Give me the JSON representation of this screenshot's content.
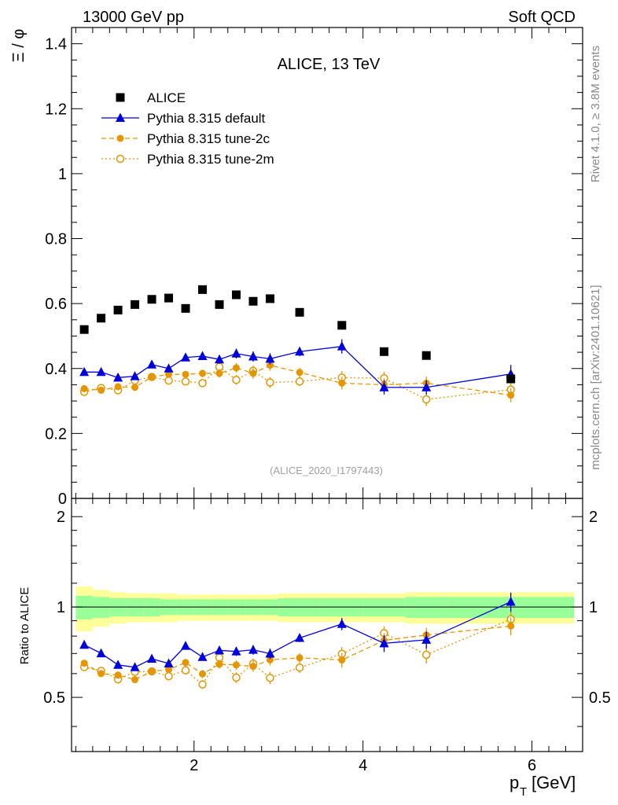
{
  "header": {
    "left": "13000 GeV pp",
    "right": "Soft QCD"
  },
  "side_labels": {
    "rivet": "Rivet 4.1.0, ≥ 3.8M events",
    "mcplots": "mcplots.cern.ch [arXiv:2401.10621]"
  },
  "chart_data": {
    "type": "scatter",
    "title": "ALICE, 13 TeV",
    "analysis_id": "(ALICE_2020_I1797443)",
    "ylabel": "Ξ / φ",
    "ratio_ylabel": "Ratio to ALICE",
    "xlabel": "p_T [GeV]",
    "xlabel_main": "p",
    "xlabel_sub": "T",
    "xlabel_unit": "[GeV]",
    "xlim": [
      0.55,
      6.6
    ],
    "ylim": [
      0,
      1.45
    ],
    "ratio_ylim": [
      0.33,
      2.3
    ],
    "x_ticks": [
      "2",
      "4",
      "6"
    ],
    "y_ticks": [
      "0",
      "0.2",
      "0.4",
      "0.6",
      "0.8",
      "1",
      "1.2",
      "1.4"
    ],
    "ratio_ticks": [
      "0.5",
      "1",
      "2"
    ],
    "x": [
      0.7,
      0.9,
      1.1,
      1.3,
      1.5,
      1.7,
      1.9,
      2.1,
      2.3,
      2.5,
      2.7,
      2.9,
      3.25,
      3.75,
      4.25,
      4.75,
      5.75
    ],
    "bins": [
      [
        0.6,
        0.8
      ],
      [
        0.8,
        1.0
      ],
      [
        1.0,
        1.2
      ],
      [
        1.2,
        1.4
      ],
      [
        1.4,
        1.6
      ],
      [
        1.6,
        1.8
      ],
      [
        1.8,
        2.0
      ],
      [
        2.0,
        2.2
      ],
      [
        2.2,
        2.4
      ],
      [
        2.4,
        2.6
      ],
      [
        2.6,
        2.8
      ],
      [
        2.8,
        3.0
      ],
      [
        3.0,
        3.5
      ],
      [
        3.5,
        4.0
      ],
      [
        4.0,
        4.5
      ],
      [
        4.5,
        5.0
      ],
      [
        5.0,
        6.5
      ]
    ],
    "band_inner": [
      0.09,
      0.08,
      0.07,
      0.07,
      0.07,
      0.06,
      0.06,
      0.06,
      0.06,
      0.06,
      0.06,
      0.06,
      0.07,
      0.07,
      0.07,
      0.08,
      0.08
    ],
    "band_outer": [
      0.17,
      0.14,
      0.12,
      0.11,
      0.11,
      0.11,
      0.1,
      0.1,
      0.1,
      0.1,
      0.1,
      0.1,
      0.11,
      0.11,
      0.11,
      0.12,
      0.12
    ],
    "series": [
      {
        "name": "ALICE",
        "color": "#000000",
        "marker": "square",
        "line": "none",
        "values": [
          0.52,
          0.555,
          0.58,
          0.597,
          0.613,
          0.617,
          0.585,
          0.643,
          0.597,
          0.627,
          0.607,
          0.615,
          0.573,
          0.533,
          0.452,
          0.44,
          0.368
        ],
        "errors": [
          0,
          0,
          0,
          0,
          0,
          0,
          0,
          0,
          0,
          0,
          0,
          0,
          0,
          0,
          0,
          0,
          0
        ]
      },
      {
        "name": "Pythia 8.315 default",
        "color": "#0000dd",
        "marker": "triangle",
        "line": "solid",
        "values": [
          0.389,
          0.389,
          0.372,
          0.376,
          0.412,
          0.4,
          0.434,
          0.438,
          0.428,
          0.446,
          0.437,
          0.43,
          0.452,
          0.468,
          0.342,
          0.342,
          0.383
        ],
        "errors": [
          0.006,
          0.007,
          0.008,
          0.008,
          0.009,
          0.009,
          0.011,
          0.012,
          0.013,
          0.015,
          0.016,
          0.017,
          0.014,
          0.022,
          0.022,
          0.022,
          0.028
        ]
      },
      {
        "name": "Pythia 8.315 tune-2c",
        "color": "#e59500",
        "marker": "circle",
        "line": "dashed",
        "values": [
          0.338,
          0.333,
          0.344,
          0.342,
          0.374,
          0.382,
          0.382,
          0.385,
          0.385,
          0.402,
          0.385,
          0.41,
          0.388,
          0.355,
          0.35,
          0.355,
          0.318
        ],
        "errors": [
          0.006,
          0.007,
          0.008,
          0.008,
          0.009,
          0.01,
          0.011,
          0.012,
          0.013,
          0.015,
          0.016,
          0.017,
          0.014,
          0.02,
          0.02,
          0.02,
          0.022
        ]
      },
      {
        "name": "Pythia 8.315 tune-2m",
        "color": "#e59500",
        "marker": "open-circle",
        "line": "dotted",
        "values": [
          0.328,
          0.34,
          0.333,
          0.363,
          0.374,
          0.363,
          0.36,
          0.355,
          0.405,
          0.365,
          0.393,
          0.357,
          0.36,
          0.372,
          0.37,
          0.305,
          0.335
        ],
        "errors": [
          0.006,
          0.007,
          0.008,
          0.008,
          0.009,
          0.01,
          0.011,
          0.012,
          0.013,
          0.015,
          0.016,
          0.017,
          0.014,
          0.02,
          0.02,
          0.02,
          0.022
        ]
      }
    ],
    "legend_position": "top-left"
  }
}
